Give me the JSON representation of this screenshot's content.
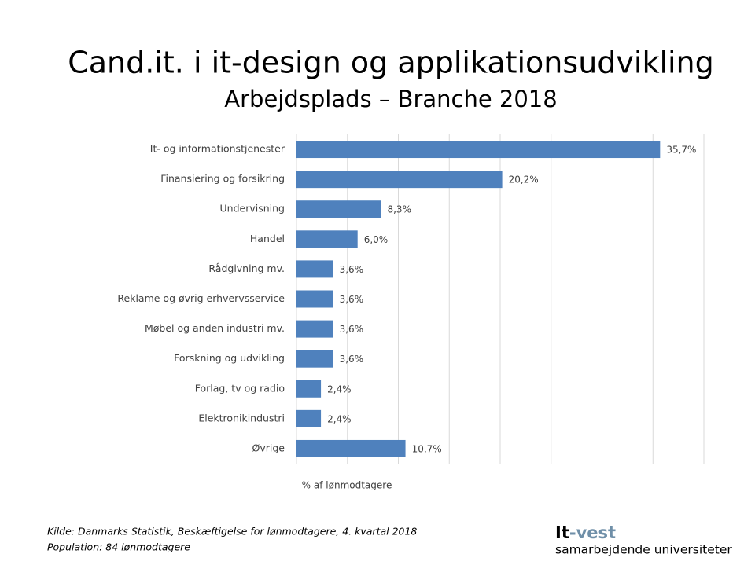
{
  "chart_data": {
    "type": "hbar",
    "title": "Cand.it. i it-design og applikationsudvikling",
    "subtitle": "Arbejdsplads – Branche 2018",
    "categories": [
      "It- og informationstjenester",
      "Finansiering og forsikring",
      "Undervisning",
      "Handel",
      "Rådgivning mv.",
      "Reklame og øvrig erhvervsservice",
      "Møbel og anden industri mv.",
      "Forskning og udvikling",
      "Forlag, tv og radio",
      "Elektronikindustri",
      "Øvrige"
    ],
    "values": [
      35.7,
      20.2,
      8.3,
      6.0,
      3.6,
      3.6,
      3.6,
      3.6,
      2.4,
      2.4,
      10.7
    ],
    "value_labels": [
      "35,7%",
      "20,2%",
      "8,3%",
      "6,0%",
      "3,6%",
      "3,6%",
      "3,6%",
      "3,6%",
      "2,4%",
      "2,4%",
      "10,7%"
    ],
    "color": "#4f81bd",
    "xlabel": "% af lønmodtagere",
    "xlim": [
      0,
      40
    ],
    "xticks": [
      0,
      5,
      10,
      15,
      20,
      25,
      30,
      35,
      40
    ],
    "xtick_labels": false,
    "grid": true
  },
  "footer": {
    "source": "Kilde: Danmarks Statistik, Beskæftigelse for lønmodtagere, 4. kvartal 2018",
    "population": "Population: 84 lønmodtagere"
  },
  "logo": {
    "name_prefix": "It",
    "name_suffix": "-vest",
    "tagline": "samarbejdende universiteter"
  }
}
